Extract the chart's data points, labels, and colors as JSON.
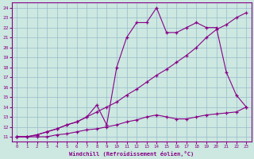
{
  "xlabel": "Windchill (Refroidissement éolien,°C)",
  "bg_color": "#cce8e0",
  "line_color": "#880088",
  "grid_color": "#99bbcc",
  "x_data": [
    0,
    1,
    2,
    3,
    4,
    5,
    6,
    7,
    8,
    9,
    10,
    11,
    12,
    13,
    14,
    15,
    16,
    17,
    18,
    19,
    20,
    21,
    22,
    23
  ],
  "line1": [
    11,
    11,
    11,
    11,
    11.2,
    11.3,
    11.5,
    11.7,
    11.8,
    12.0,
    12.2,
    12.5,
    12.7,
    13.0,
    13.2,
    13.0,
    12.8,
    12.8,
    13.0,
    13.2,
    13.3,
    13.4,
    13.5,
    14.0
  ],
  "line2": [
    11,
    11,
    11.2,
    11.5,
    11.8,
    12.2,
    12.5,
    13.0,
    13.5,
    14.0,
    14.5,
    15.2,
    15.8,
    16.5,
    17.2,
    17.8,
    18.5,
    19.2,
    20.0,
    21.0,
    21.8,
    22.3,
    23.0,
    23.5
  ],
  "line3": [
    11,
    11,
    11.2,
    11.5,
    11.8,
    12.2,
    12.5,
    13.0,
    14.2,
    12.2,
    18.0,
    21.0,
    22.5,
    22.5,
    24.0,
    21.5,
    21.5,
    22.0,
    22.5,
    22.0,
    22.0,
    17.5,
    15.2,
    14.0
  ],
  "ylim": [
    10.5,
    24.5
  ],
  "xlim": [
    -0.5,
    23.5
  ],
  "yticks": [
    11,
    12,
    13,
    14,
    15,
    16,
    17,
    18,
    19,
    20,
    21,
    22,
    23,
    24
  ],
  "xticks": [
    0,
    1,
    2,
    3,
    4,
    5,
    6,
    7,
    8,
    9,
    10,
    11,
    12,
    13,
    14,
    15,
    16,
    17,
    18,
    19,
    20,
    21,
    22,
    23
  ]
}
